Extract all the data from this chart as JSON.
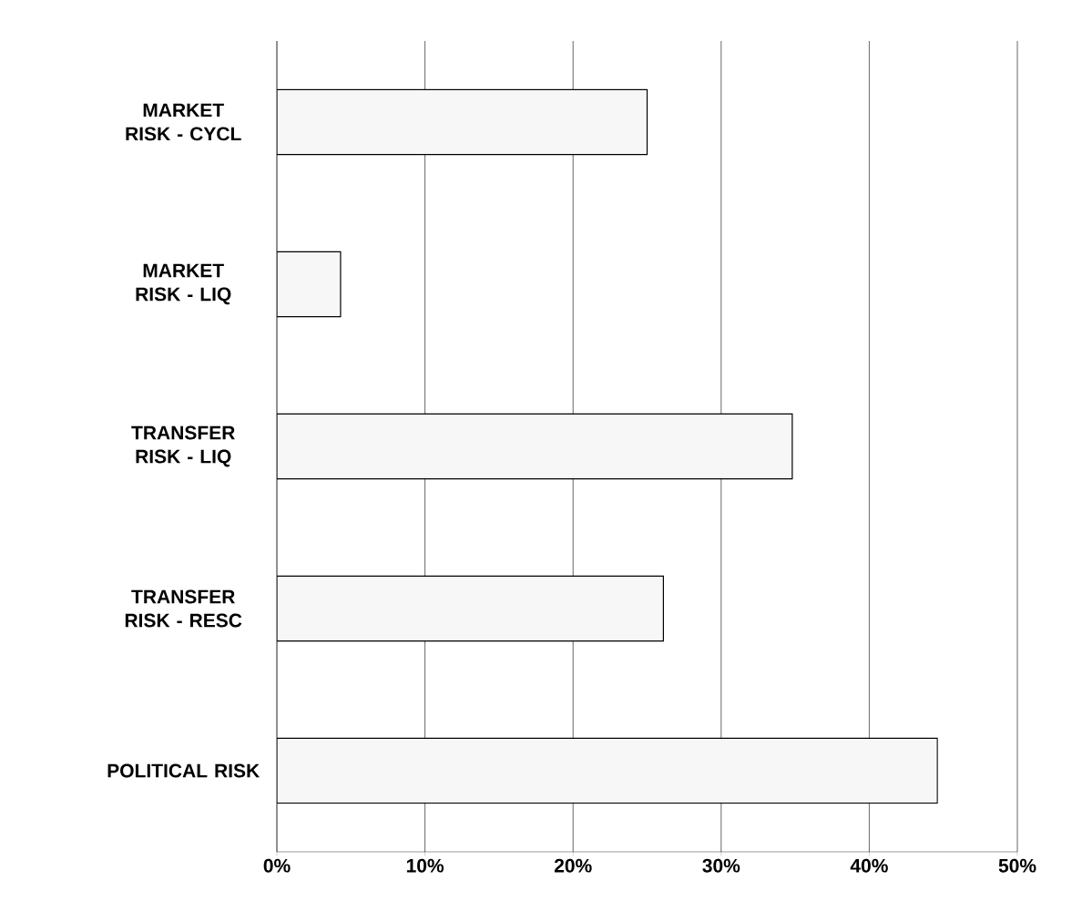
{
  "chart_data": {
    "type": "bar",
    "orientation": "horizontal",
    "categories": [
      "MARKET RISK - CYCL",
      "MARKET RISK - LIQ",
      "TRANSFER RISK - LIQ",
      "TRANSFER RISK - RESC",
      "POLITICAL RISK"
    ],
    "values": [
      25.0,
      4.3,
      34.8,
      26.1,
      44.6
    ],
    "color": "#f7f7f7",
    "xlim": [
      0,
      50
    ],
    "xticks": [
      {
        "value": 0,
        "label": "0%"
      },
      {
        "value": 10,
        "label": "10%"
      },
      {
        "value": 20,
        "label": "20%"
      },
      {
        "value": 30,
        "label": "30%"
      },
      {
        "value": 40,
        "label": "40%"
      },
      {
        "value": 50,
        "label": "50%"
      }
    ],
    "grid": "x"
  }
}
